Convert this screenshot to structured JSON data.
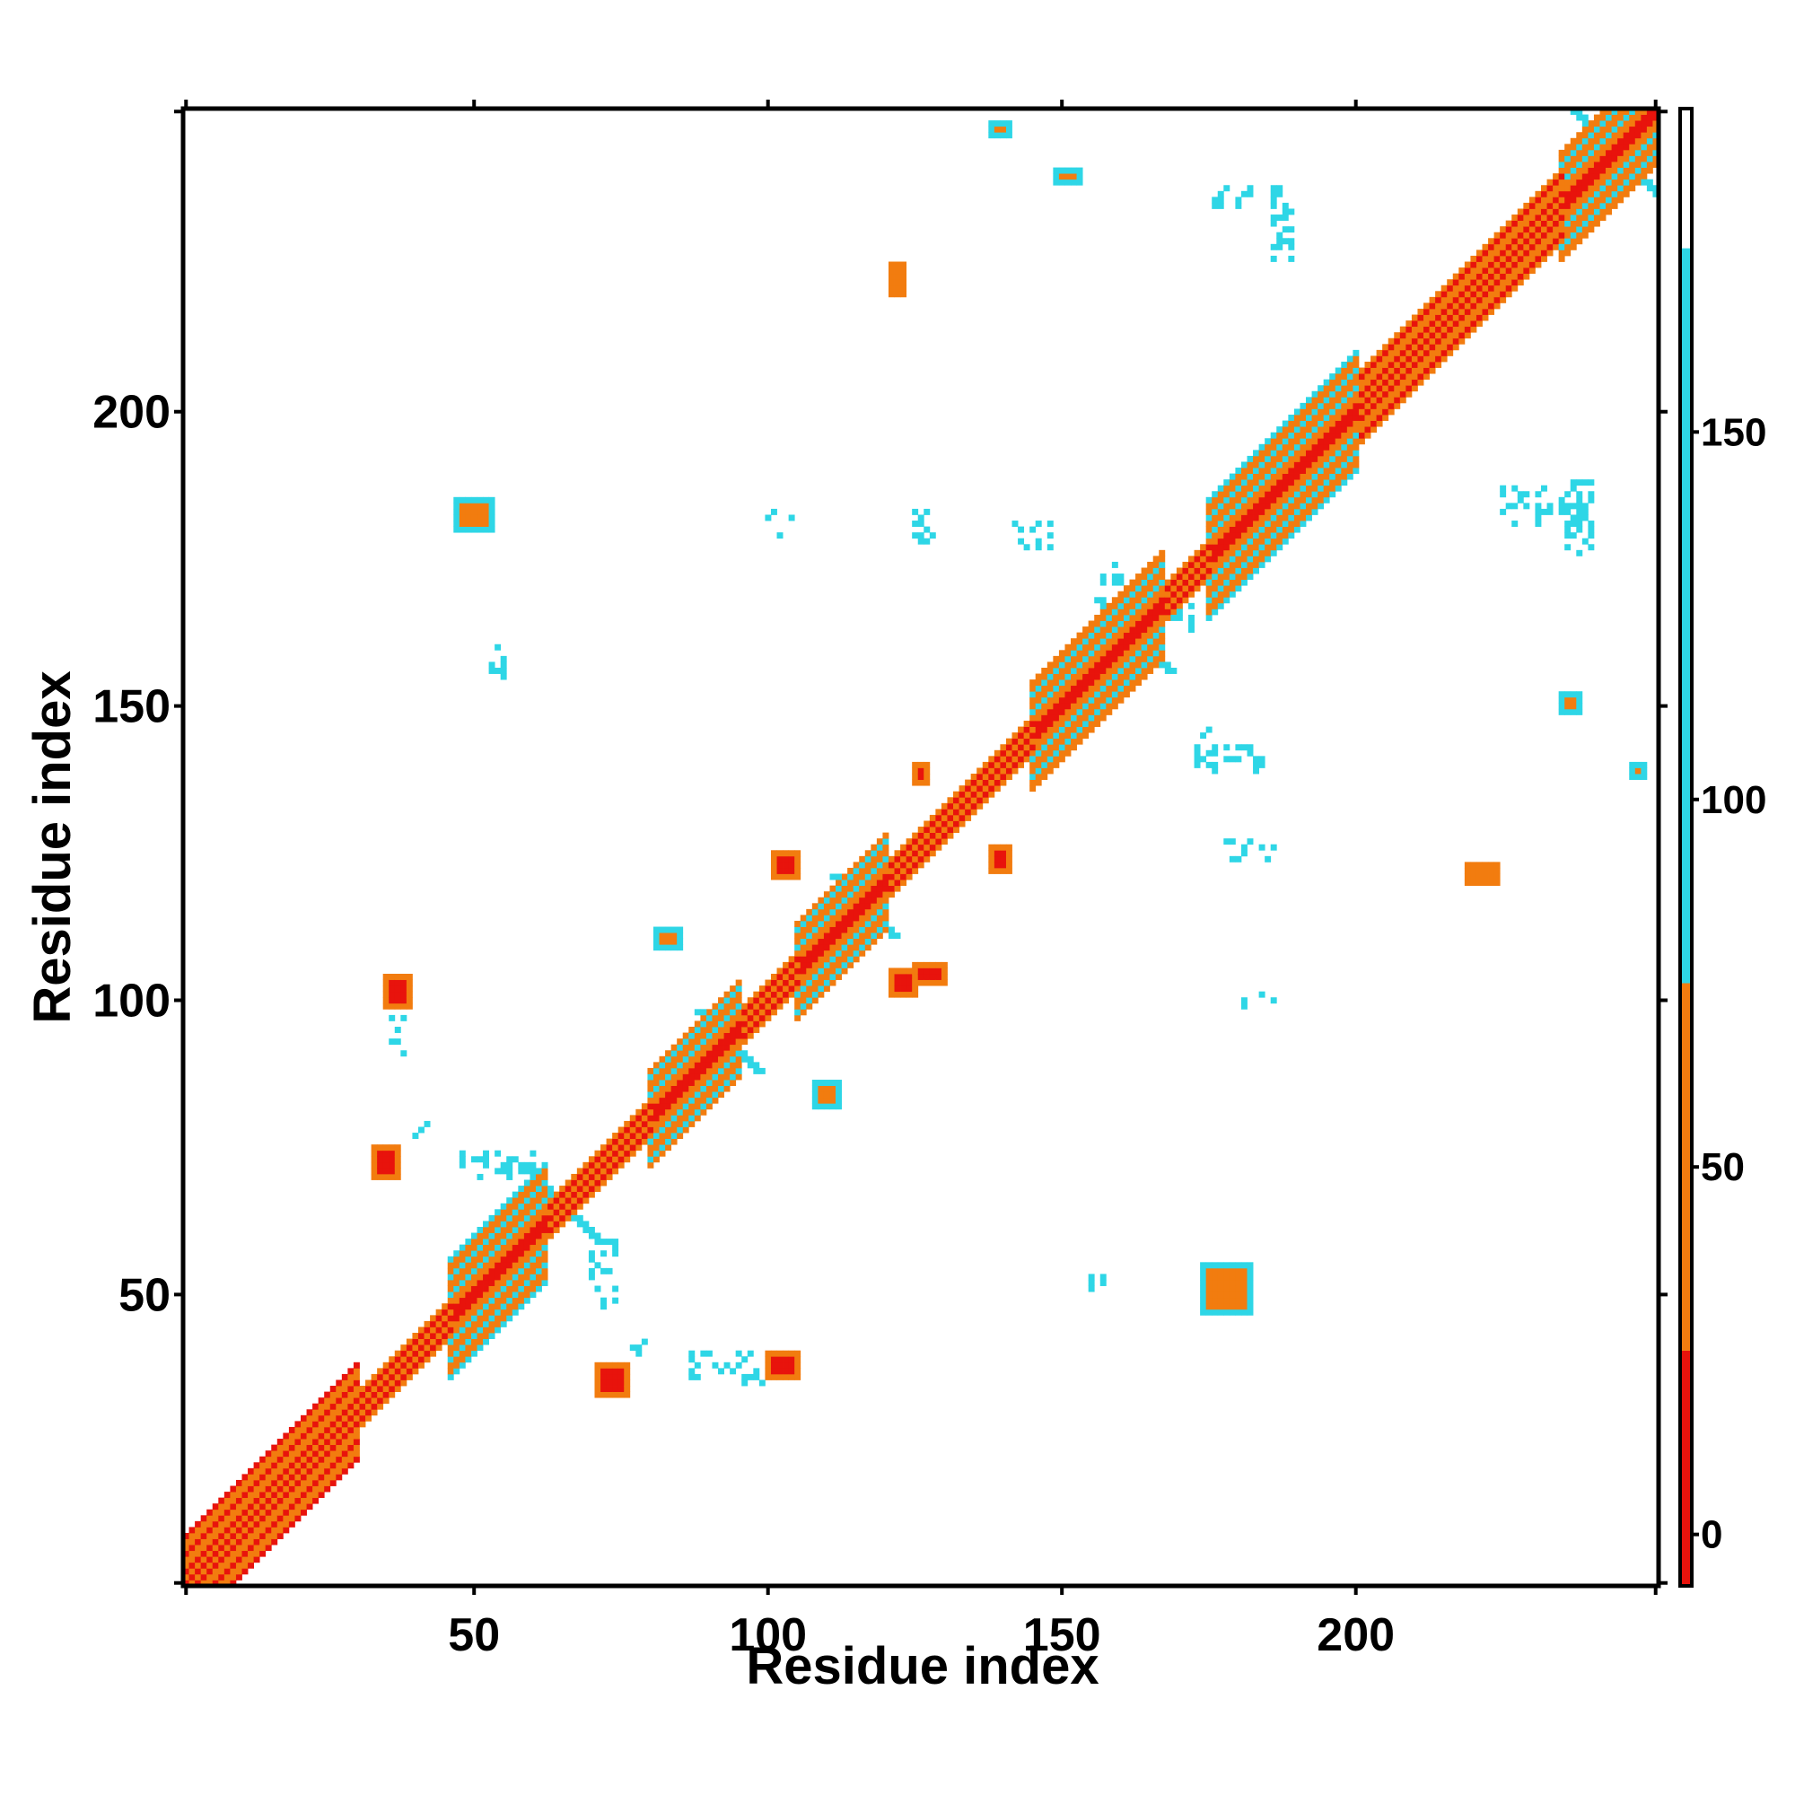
{
  "chart_data": {
    "type": "heatmap",
    "title": "",
    "xlabel": "Residue index",
    "ylabel": "Residue index",
    "xlim": [
      1,
      251
    ],
    "ylim": [
      1,
      251
    ],
    "x_ticks": [
      50,
      100,
      150,
      200
    ],
    "y_ticks": [
      50,
      100,
      150,
      200
    ],
    "colorbar": {
      "range": [
        -7,
        194
      ],
      "ticks": [
        0,
        50,
        100,
        150
      ],
      "bands": [
        {
          "from": -7,
          "to": 25,
          "color": "#e8130c"
        },
        {
          "from": 25,
          "to": 75,
          "color": "#f27c0f"
        },
        {
          "from": 75,
          "to": 175,
          "color": "#2ed6e6"
        },
        {
          "from": 175,
          "to": 194,
          "color": "#ffffff"
        }
      ]
    },
    "diagonal_segments": [
      {
        "from": 1,
        "to": 30,
        "width": 8,
        "value": 60
      },
      {
        "from": 30,
        "to": 46,
        "width": 3,
        "value": 10
      },
      {
        "from": 46,
        "to": 62,
        "width": 10,
        "value": 110
      },
      {
        "from": 62,
        "to": 80,
        "width": 3,
        "value": 15
      },
      {
        "from": 80,
        "to": 95,
        "width": 8,
        "value": 105
      },
      {
        "from": 95,
        "to": 105,
        "width": 3,
        "value": 20
      },
      {
        "from": 105,
        "to": 120,
        "width": 8,
        "value": 105
      },
      {
        "from": 120,
        "to": 145,
        "width": 3,
        "value": 18
      },
      {
        "from": 145,
        "to": 167,
        "width": 9,
        "value": 110
      },
      {
        "from": 167,
        "to": 175,
        "width": 3,
        "value": 30
      },
      {
        "from": 175,
        "to": 200,
        "width": 10,
        "value": 110
      },
      {
        "from": 200,
        "to": 235,
        "width": 6,
        "value": 70
      },
      {
        "from": 235,
        "to": 251,
        "width": 9,
        "value": 160
      }
    ],
    "contact_patches": [
      {
        "x": [
          33,
          37
        ],
        "y": [
          70,
          75
        ],
        "value": 10
      },
      {
        "x": [
          71,
          76
        ],
        "y": [
          33,
          38
        ],
        "value": 10
      },
      {
        "x": [
          35,
          39
        ],
        "y": [
          99,
          104
        ],
        "value": 8
      },
      {
        "x": [
          100,
          105
        ],
        "y": [
          36,
          40
        ],
        "value": 8
      },
      {
        "x": [
          101,
          105
        ],
        "y": [
          121,
          125
        ],
        "value": 10
      },
      {
        "x": [
          121,
          125
        ],
        "y": [
          101,
          105
        ],
        "value": 10
      },
      {
        "x": [
          125,
          127
        ],
        "y": [
          137,
          140
        ],
        "value": 8
      },
      {
        "x": [
          138,
          141
        ],
        "y": [
          122,
          126
        ],
        "value": 8
      },
      {
        "x": [
          125,
          130
        ],
        "y": [
          103,
          106
        ],
        "value": 12
      },
      {
        "x": [
          47,
          53
        ],
        "y": [
          180,
          185
        ],
        "value": 45
      },
      {
        "x": [
          174,
          182
        ],
        "y": [
          47,
          55
        ],
        "value": 45
      },
      {
        "x": [
          81,
          85
        ],
        "y": [
          109,
          112
        ],
        "value": 45
      },
      {
        "x": [
          108,
          112
        ],
        "y": [
          82,
          86
        ],
        "value": 45
      },
      {
        "x": [
          121,
          123
        ],
        "y": [
          220,
          225
        ],
        "value": 35
      },
      {
        "x": [
          219,
          224
        ],
        "y": [
          120,
          123
        ],
        "value": 30
      },
      {
        "x": [
          138,
          141
        ],
        "y": [
          247,
          249
        ],
        "value": 40
      },
      {
        "x": [
          149,
          153
        ],
        "y": [
          239,
          241
        ],
        "value": 40
      },
      {
        "x": [
          235,
          238
        ],
        "y": [
          149,
          152
        ],
        "value": 40
      },
      {
        "x": [
          247,
          249
        ],
        "y": [
          138,
          140
        ],
        "value": 40
      }
    ],
    "sparse_contacts": [
      {
        "x": [
          40,
          42
        ],
        "y": [
          76,
          79
        ],
        "value": 110
      },
      {
        "x": [
          77,
          80
        ],
        "y": [
          40,
          42
        ],
        "value": 110
      },
      {
        "x": [
          96,
          99
        ],
        "y": [
          35,
          37
        ],
        "value": 110
      },
      {
        "x": [
          36,
          38
        ],
        "y": [
          90,
          97
        ],
        "value": 110
      },
      {
        "x": [
          87,
          98
        ],
        "y": [
          36,
          40
        ],
        "value": 110
      },
      {
        "x": [
          48,
          60
        ],
        "y": [
          70,
          74
        ],
        "value": 110
      },
      {
        "x": [
          70,
          74
        ],
        "y": [
          48,
          60
        ],
        "value": 120
      },
      {
        "x": [
          53,
          55
        ],
        "y": [
          155,
          160
        ],
        "value": 130
      },
      {
        "x": [
          176,
          188
        ],
        "y": [
          235,
          238
        ],
        "value": 130
      },
      {
        "x": [
          235,
          240
        ],
        "y": [
          176,
          188
        ],
        "value": 130
      },
      {
        "x": [
          154,
          158
        ],
        "y": [
          51,
          53
        ],
        "value": 130
      },
      {
        "x": [
          100,
          104
        ],
        "y": [
          178,
          183
        ],
        "value": 120
      },
      {
        "x": [
          125,
          128
        ],
        "y": [
          178,
          183
        ],
        "value": 120
      },
      {
        "x": [
          142,
          148
        ],
        "y": [
          177,
          181
        ],
        "value": 125
      },
      {
        "x": [
          173,
          176
        ],
        "y": [
          139,
          146
        ],
        "value": 125
      },
      {
        "x": [
          178,
          184
        ],
        "y": [
          139,
          143
        ],
        "value": 125
      },
      {
        "x": [
          178,
          186
        ],
        "y": [
          124,
          127
        ],
        "value": 125
      },
      {
        "x": [
          180,
          186
        ],
        "y": [
          99,
          101
        ],
        "value": 125
      },
      {
        "x": [
          225,
          237
        ],
        "y": [
          181,
          187
        ],
        "value": 130
      },
      {
        "x": [
          186,
          189
        ],
        "y": [
          226,
          234
        ],
        "value": 130
      },
      {
        "x": [
          169,
          172
        ],
        "y": [
          163,
          170
        ],
        "value": 125
      },
      {
        "x": [
          157,
          160
        ],
        "y": [
          171,
          174
        ],
        "value": 125
      }
    ],
    "cross_features": [
      {
        "at": 65,
        "size": 6,
        "value": 110
      },
      {
        "at": 93,
        "size": 5,
        "value": 110
      },
      {
        "at": 116,
        "size": 5,
        "value": 110
      },
      {
        "at": 162,
        "size": 6,
        "value": 110
      },
      {
        "at": 244,
        "size": 7,
        "value": 160
      }
    ],
    "grid": false,
    "legend": "colorbar-right"
  }
}
